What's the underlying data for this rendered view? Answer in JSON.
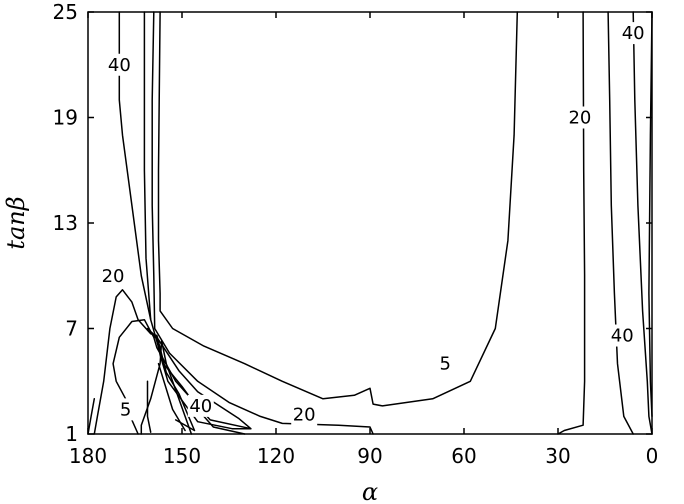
{
  "chart_data": {
    "type": "line",
    "title": "",
    "xlabel": "α",
    "ylabel": "tanβ",
    "xlim": [
      180,
      0
    ],
    "ylim": [
      1,
      25
    ],
    "x_reversed": true,
    "xticks": [
      180,
      150,
      120,
      90,
      60,
      30,
      0
    ],
    "yticks": [
      1,
      7,
      13,
      19,
      25
    ],
    "grid": false,
    "contour_levels": [
      "5",
      "20",
      "40"
    ],
    "series": [
      {
        "level": 5,
        "points": [
          [
            157,
            25
          ],
          [
            157.5,
            16
          ],
          [
            157.5,
            12
          ],
          [
            157,
            9
          ],
          [
            157,
            8
          ],
          [
            153,
            7
          ],
          [
            143,
            6
          ],
          [
            130,
            5
          ],
          [
            118,
            4
          ],
          [
            105,
            3
          ],
          [
            95,
            3.2
          ],
          [
            90,
            3.6
          ],
          [
            89,
            2.7
          ],
          [
            86,
            2.6
          ],
          [
            70,
            3
          ],
          [
            58,
            4
          ],
          [
            50,
            7
          ],
          [
            46,
            12
          ],
          [
            44,
            18
          ],
          [
            43,
            25
          ]
        ]
      },
      {
        "level": 5,
        "points": [
          [
            163,
            1
          ],
          [
            163,
            1.5
          ],
          [
            160,
            3
          ],
          [
            157,
            5
          ],
          [
            156.5,
            6.3
          ],
          [
            155,
            5
          ],
          [
            152,
            3.5
          ],
          [
            149,
            2
          ],
          [
            147,
            1
          ]
        ]
      },
      {
        "level": 5,
        "points": [
          [
            164,
            1
          ],
          [
            166.5,
            2
          ],
          [
            168,
            3
          ],
          [
            171,
            4
          ],
          [
            172,
            5
          ],
          [
            170,
            6.5
          ],
          [
            166,
            7.4
          ],
          [
            162,
            7.5
          ],
          [
            159,
            6.5
          ],
          [
            158,
            5.9
          ],
          [
            152,
            4
          ],
          [
            141,
            1.8
          ],
          [
            128,
            1.3
          ],
          [
            132,
            1.9
          ],
          [
            145,
            3.4
          ],
          [
            151,
            4.6
          ],
          [
            158,
            6.5
          ],
          [
            161,
            7
          ],
          [
            158,
            6.4
          ],
          [
            157,
            5.5
          ],
          [
            154.5,
            4
          ],
          [
            145,
            1.7
          ],
          [
            134,
            1.3
          ],
          [
            128,
            1.3
          ]
        ]
      },
      {
        "level": 20,
        "points": [
          [
            159,
            25
          ],
          [
            159.5,
            20
          ],
          [
            159.5,
            14
          ],
          [
            159,
            10
          ],
          [
            158.7,
            7
          ],
          [
            154,
            5.6
          ],
          [
            145,
            4
          ],
          [
            135,
            2.8
          ],
          [
            125,
            2
          ],
          [
            118,
            1.6
          ],
          [
            100,
            1.5
          ],
          [
            90,
            1.4
          ],
          [
            89,
            1
          ]
        ]
      },
      {
        "level": 20,
        "points": [
          [
            178,
            1
          ],
          [
            177,
            2
          ],
          [
            175,
            4
          ],
          [
            173,
            7
          ],
          [
            171,
            8.8
          ],
          [
            169,
            9.2
          ],
          [
            166,
            8.5
          ],
          [
            164,
            7.5
          ],
          [
            160,
            6.7
          ],
          [
            158,
            6.6
          ],
          [
            155,
            4.5
          ],
          [
            151,
            3.3
          ],
          [
            146,
            1.2
          ],
          [
            152,
            1.8
          ]
        ]
      },
      {
        "level": 20,
        "points": [
          [
            160,
            1.1
          ],
          [
            161,
            2
          ],
          [
            161,
            4
          ]
        ]
      },
      {
        "level": 20,
        "points": [
          [
            30,
            1
          ],
          [
            28,
            1.2
          ],
          [
            22,
            1.5
          ],
          [
            21.5,
            4
          ],
          [
            21.5,
            10
          ],
          [
            21.8,
            16
          ],
          [
            22,
            25
          ]
        ]
      },
      {
        "level": 40,
        "points": [
          [
            170,
            25
          ],
          [
            170,
            20
          ],
          [
            169,
            18
          ],
          [
            166,
            14
          ],
          [
            163,
            10
          ],
          [
            160,
            7.5
          ],
          [
            156,
            5
          ],
          [
            155,
            4.8
          ],
          [
            150,
            3.7
          ],
          [
            143,
            2
          ],
          [
            140,
            1.4
          ],
          [
            130,
            1
          ]
        ]
      },
      {
        "level": 40,
        "points": [
          [
            149,
            1.2
          ],
          [
            153,
            2.4
          ],
          [
            157.5,
            5
          ]
        ]
      },
      {
        "level": 40,
        "points": [
          [
            162,
            25
          ],
          [
            162,
            16
          ],
          [
            161.5,
            11
          ],
          [
            160,
            7.5
          ]
        ]
      },
      {
        "level": 40,
        "points": [
          [
            180,
            1
          ],
          [
            179,
            2
          ],
          [
            178,
            3
          ]
        ]
      },
      {
        "level": 40,
        "points": [
          [
            14,
            25
          ],
          [
            13.5,
            20
          ],
          [
            13,
            14
          ],
          [
            12,
            9
          ],
          [
            11,
            5
          ],
          [
            9,
            2
          ],
          [
            6,
            1
          ]
        ]
      },
      {
        "level": 40,
        "points": [
          [
            6,
            25
          ],
          [
            5.5,
            20
          ],
          [
            4.5,
            14
          ],
          [
            3,
            8
          ],
          [
            1.5,
            4
          ],
          [
            1,
            2
          ],
          [
            0,
            1
          ]
        ]
      },
      {
        "level": 40,
        "points": [
          [
            0,
            25
          ],
          [
            0.5,
            18
          ],
          [
            1,
            9
          ],
          [
            0.5,
            4
          ],
          [
            0,
            2
          ]
        ]
      }
    ],
    "labels": [
      {
        "text": "40",
        "x": 170,
        "y": 22
      },
      {
        "text": "20",
        "x": 172,
        "y": 10
      },
      {
        "text": "5",
        "x": 168,
        "y": 2.4
      },
      {
        "text": "40",
        "x": 144,
        "y": 2.6
      },
      {
        "text": "20",
        "x": 111,
        "y": 2.1
      },
      {
        "text": "5",
        "x": 66,
        "y": 5
      },
      {
        "text": "20",
        "x": 23,
        "y": 19
      },
      {
        "text": "40",
        "x": 9.5,
        "y": 6.6
      },
      {
        "text": "40",
        "x": 6,
        "y": 23.8
      }
    ]
  }
}
